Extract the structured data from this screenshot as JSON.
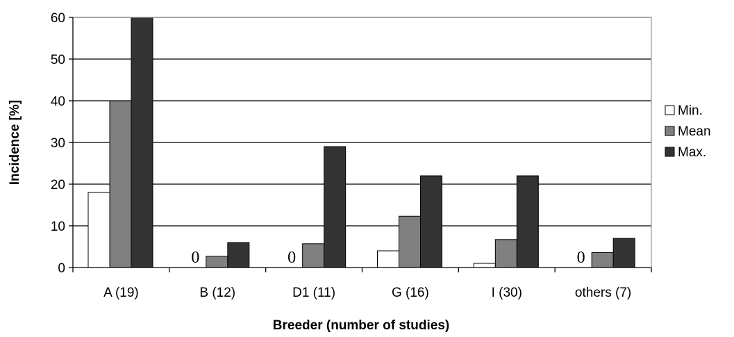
{
  "chart_data": {
    "type": "bar",
    "title": "",
    "xlabel": "Breeder (number of studies)",
    "ylabel": "Incidence [%]",
    "categories": [
      "A (19)",
      "B (12)",
      "D1 (11)",
      "G (16)",
      "I (30)",
      "others (7)"
    ],
    "series": [
      {
        "name": "Min.",
        "color": "#ffffff",
        "values": [
          18,
          0,
          0,
          4,
          1,
          0
        ]
      },
      {
        "name": "Mean",
        "color": "#808080",
        "values": [
          40,
          2.7,
          5.7,
          12.3,
          6.7,
          3.6
        ]
      },
      {
        "name": "Max.",
        "color": "#333333",
        "values": [
          60,
          6,
          29,
          22,
          22,
          7
        ]
      }
    ],
    "ylim": [
      0,
      60
    ],
    "yticks": [
      0,
      10,
      20,
      30,
      40,
      50,
      60
    ],
    "grid": true,
    "legend": "right",
    "zero_labels": [
      {
        "category": "B (12)",
        "text": "0"
      },
      {
        "category": "D1 (11)",
        "text": "0"
      },
      {
        "category": "others (7)",
        "text": "0"
      }
    ]
  }
}
